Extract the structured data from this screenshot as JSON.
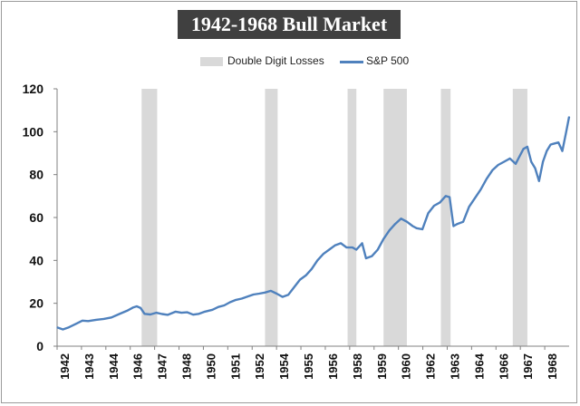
{
  "chart_data": {
    "type": "line",
    "title": "1942-1968 Bull Market",
    "xlabel": "",
    "ylabel": "",
    "ylim": [
      0,
      120
    ],
    "xlim": [
      1942.0,
      1968.35
    ],
    "yticks": [
      0,
      20,
      40,
      60,
      80,
      100,
      120
    ],
    "xtick_labels": [
      "1942",
      "1943",
      "1944",
      "1946",
      "1947",
      "1948",
      "1950",
      "1951",
      "1952",
      "1954",
      "1955",
      "1956",
      "1958",
      "1959",
      "1960",
      "1962",
      "1963",
      "1964",
      "1966",
      "1967",
      "1968"
    ],
    "grid": false,
    "legend_position": "top-center",
    "legend": [
      {
        "label": "Double Digit Losses",
        "kind": "box",
        "color": "#d9d9d9"
      },
      {
        "label": "S&P 500",
        "kind": "line",
        "color": "#4f81bd"
      }
    ],
    "series": [
      {
        "name": "S&P 500",
        "color": "#4f81bd",
        "x": [
          1942.0,
          1942.3,
          1942.6,
          1943.0,
          1943.3,
          1943.6,
          1944.0,
          1944.4,
          1944.8,
          1945.2,
          1945.6,
          1945.9,
          1946.1,
          1946.3,
          1946.5,
          1946.8,
          1947.1,
          1947.4,
          1947.7,
          1948.1,
          1948.4,
          1948.7,
          1949.0,
          1949.3,
          1949.6,
          1950.0,
          1950.3,
          1950.6,
          1950.9,
          1951.2,
          1951.5,
          1951.8,
          1952.1,
          1952.4,
          1952.7,
          1953.0,
          1953.3,
          1953.6,
          1953.9,
          1954.2,
          1954.5,
          1954.8,
          1955.1,
          1955.4,
          1955.7,
          1956.0,
          1956.3,
          1956.6,
          1956.9,
          1957.2,
          1957.4,
          1957.7,
          1957.9,
          1958.2,
          1958.5,
          1958.8,
          1959.1,
          1959.4,
          1959.7,
          1960.0,
          1960.3,
          1960.5,
          1960.8,
          1961.1,
          1961.4,
          1961.7,
          1962.0,
          1962.2,
          1962.4,
          1962.6,
          1962.9,
          1963.2,
          1963.5,
          1963.8,
          1964.1,
          1964.4,
          1964.7,
          1965.0,
          1965.3,
          1965.6,
          1965.8,
          1966.0,
          1966.2,
          1966.4,
          1966.6,
          1966.8,
          1967.0,
          1967.2,
          1967.4,
          1967.6,
          1967.8,
          1968.0,
          1968.2,
          1968.35
        ],
        "values": [
          8.8,
          7.8,
          8.8,
          10.5,
          11.9,
          11.7,
          12.3,
          12.7,
          13.4,
          15.0,
          16.5,
          18.0,
          18.6,
          17.8,
          15.1,
          14.8,
          15.6,
          15.0,
          14.6,
          16.1,
          15.6,
          15.8,
          14.7,
          15.1,
          16.1,
          17.0,
          18.3,
          19.0,
          20.5,
          21.6,
          22.2,
          23.1,
          24.1,
          24.5,
          25.0,
          25.8,
          24.5,
          23.0,
          24.0,
          27.5,
          31.0,
          33.0,
          36.0,
          40.0,
          43.0,
          45.0,
          47.0,
          48.0,
          46.0,
          46.0,
          45.0,
          48.0,
          41.0,
          42.0,
          45.0,
          50.0,
          54.0,
          57.0,
          59.5,
          58.0,
          56.0,
          55.0,
          54.5,
          62.0,
          65.5,
          67.0,
          70.0,
          69.5,
          56.0,
          57.0,
          58.0,
          65.0,
          69.0,
          73.0,
          78.0,
          82.0,
          84.5,
          86.0,
          87.5,
          85.0,
          88.5,
          92.0,
          93.0,
          86.0,
          83.0,
          77.0,
          86.0,
          91.0,
          94.0,
          94.5,
          95.0,
          91.0,
          100.0,
          107.0
        ]
      }
    ],
    "bands": [
      [
        1946.35,
        1947.15
      ],
      [
        1952.7,
        1953.35
      ],
      [
        1956.95,
        1957.4
      ],
      [
        1958.8,
        1960.0
      ],
      [
        1961.75,
        1962.25
      ],
      [
        1965.45,
        1966.2
      ]
    ]
  }
}
